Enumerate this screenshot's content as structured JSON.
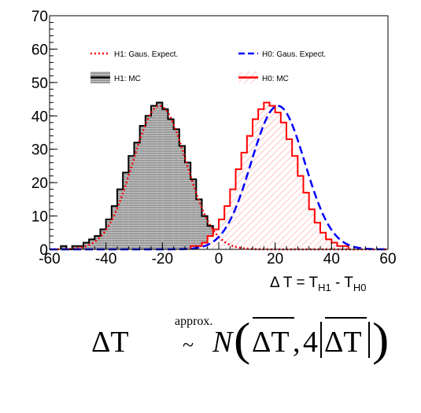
{
  "chart_data": {
    "type": "histogram",
    "xlim": [
      -60,
      60
    ],
    "ylim": [
      0,
      70
    ],
    "xticks": [
      -60,
      -40,
      -20,
      0,
      20,
      40,
      60
    ],
    "yticks": [
      0,
      10,
      20,
      30,
      40,
      50,
      60,
      70
    ],
    "xlabel": "Δ T = T",
    "xlabel_sub1": "H1",
    "xlabel_mid": " - T",
    "xlabel_sub2": "H0",
    "bin_width": 2,
    "series": [
      {
        "name": "H1: MC",
        "kind": "histogram",
        "color": "#000000",
        "fill": "#b0b0b0",
        "bin_edges_start": -56,
        "counts": [
          1,
          0,
          1,
          1,
          2,
          3,
          4,
          6,
          9,
          13,
          18,
          23,
          28,
          32,
          37,
          40,
          43,
          44,
          42,
          39,
          36,
          31,
          26,
          21,
          15,
          10,
          7,
          4,
          2,
          1,
          1
        ]
      },
      {
        "name": "H0: MC",
        "kind": "histogram",
        "color": "#ff0000",
        "fill": "#ff9a9a",
        "bin_edges_start": -10,
        "counts": [
          1,
          1,
          2,
          4,
          6,
          9,
          13,
          18,
          24,
          29,
          34,
          39,
          42,
          44,
          43,
          41,
          38,
          33,
          28,
          22,
          17,
          12,
          8,
          5,
          3,
          2,
          1,
          1
        ]
      },
      {
        "name": "H1: Gaus. Expect.",
        "kind": "gaussian",
        "mean": -21,
        "sigma": 9.5,
        "peak": 43,
        "color": "#ff0000",
        "dash": "dotted"
      },
      {
        "name": "H0: Gaus. Expect.",
        "kind": "gaussian",
        "mean": 21,
        "sigma": 9.5,
        "peak": 43,
        "color": "#0000ff",
        "dash": "dashed"
      }
    ],
    "legend": [
      {
        "label": "H1: Gaus. Expect.",
        "style": "red-dotted"
      },
      {
        "label": "H0: Gaus. Expect.",
        "style": "blue-dashed"
      },
      {
        "label": "H1: MC",
        "style": "black-grey-box"
      },
      {
        "label": "H0: MC",
        "style": "red-hatched-box"
      }
    ]
  },
  "formula": {
    "lhs": "ΔT",
    "over_tilde": "approx.",
    "tilde": "~",
    "N": "N",
    "arg1": "ΔT",
    "comma": ",",
    "coef": "4",
    "arg2": "ΔT"
  }
}
